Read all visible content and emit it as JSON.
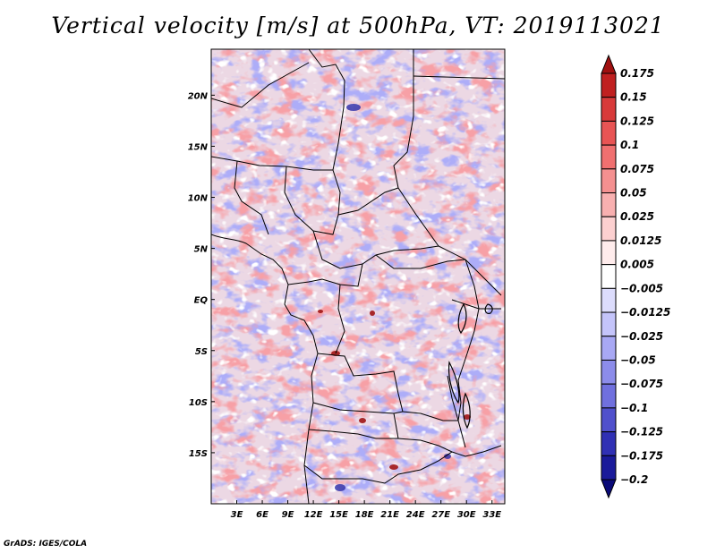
{
  "title": "Vertical velocity [m/s] at 500hPa, VT: 2019113021",
  "credit": "GrADS: IGES/COLA",
  "map": {
    "lat_labels": [
      "20N",
      "15N",
      "10N",
      "5N",
      "EQ",
      "5S",
      "10S",
      "15S"
    ],
    "lat_values": [
      20,
      15,
      10,
      5,
      0,
      -5,
      -10,
      -15
    ],
    "lon_labels": [
      "3E",
      "6E",
      "9E",
      "12E",
      "15E",
      "18E",
      "21E",
      "24E",
      "27E",
      "30E",
      "33E"
    ],
    "lon_values": [
      3,
      6,
      9,
      12,
      15,
      18,
      21,
      24,
      27,
      30,
      33
    ],
    "lat_range": [
      -20,
      24.5
    ],
    "lon_range": [
      0,
      34.5
    ]
  },
  "colorbar": {
    "levels": [
      "0.175",
      "0.15",
      "0.125",
      "0.1",
      "0.075",
      "0.05",
      "0.025",
      "0.0125",
      "0.005",
      "−0.005",
      "−0.0125",
      "−0.025",
      "−0.05",
      "−0.075",
      "−0.1",
      "−0.125",
      "−0.175",
      "−0.2"
    ],
    "colors": [
      "#a01010",
      "#c02020",
      "#d83a3a",
      "#e85454",
      "#f07070",
      "#f49090",
      "#f8b0b0",
      "#fcd0d0",
      "#ffecec",
      "#ffffff",
      "#dcdcfc",
      "#c4c4fa",
      "#a8a8f4",
      "#8c8cea",
      "#7070de",
      "#5050cc",
      "#3030b4",
      "#1a1a9a",
      "#0a0a78"
    ]
  }
}
